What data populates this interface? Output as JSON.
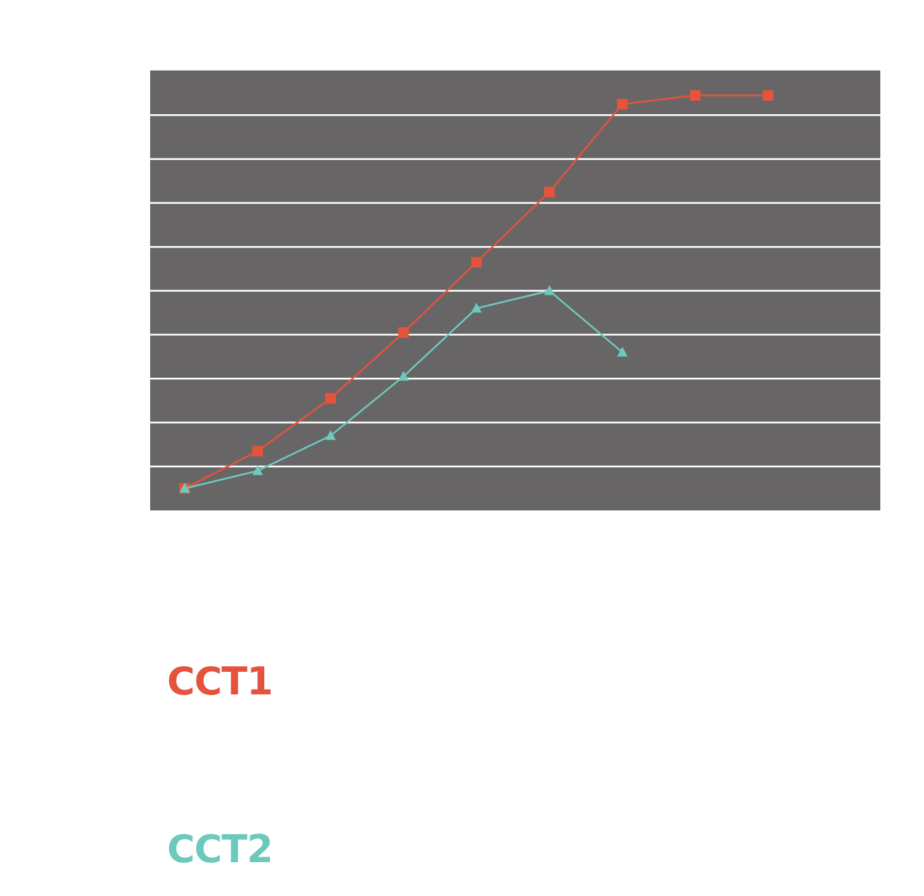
{
  "chart_data": {
    "type": "line",
    "x": [
      1,
      2,
      3,
      4,
      5,
      6,
      7,
      8,
      9
    ],
    "ylim": [
      0,
      10
    ],
    "grid": true,
    "background": "#676566",
    "grid_color": "#ffffff",
    "legend_position": "below",
    "series": [
      {
        "name": "CCT1",
        "color": "#e5533c",
        "marker": "square",
        "values": [
          0.5,
          1.35,
          2.55,
          4.05,
          5.65,
          7.25,
          9.25,
          9.45,
          9.45
        ]
      },
      {
        "name": "CCT2",
        "color": "#6ec9bd",
        "marker": "triangle",
        "values": [
          0.5,
          0.9,
          1.7,
          3.05,
          4.6,
          5.0,
          3.6,
          null,
          null
        ]
      }
    ]
  }
}
